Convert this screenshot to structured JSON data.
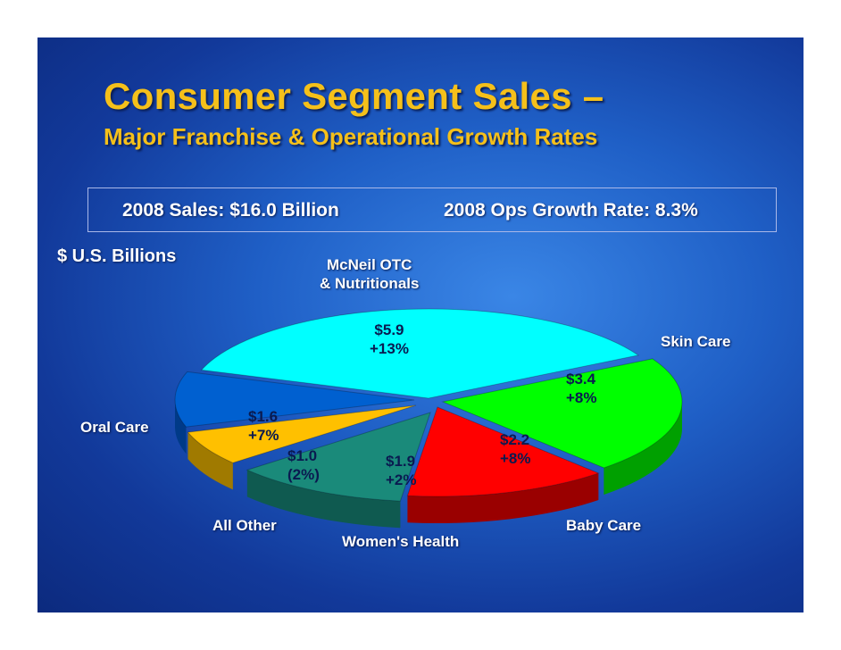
{
  "slide": {
    "title": "Consumer Segment Sales –",
    "subtitle": "Major Franchise & Operational Growth Rates",
    "sales_text": "2008 Sales: $16.0 Billion",
    "growth_text": "2008 Ops Growth Rate: 8.3%",
    "units_label": "$ U.S. Billions"
  },
  "chart_data": {
    "type": "pie",
    "title": "Consumer Segment Sales – Major Franchise & Operational Growth Rates",
    "unit": "$ U.S. Billions",
    "total": 16.0,
    "slices": [
      {
        "name": "McNeil OTC & Nutritionals",
        "name_line1": "McNeil OTC",
        "name_line2": "& Nutritionals",
        "value": 5.9,
        "value_label": "$5.9",
        "growth_label": "+13%",
        "color": "#00ffff",
        "side_color": "#00a8b4"
      },
      {
        "name": "Skin Care",
        "value": 3.4,
        "value_label": "$3.4",
        "growth_label": "+8%",
        "color": "#00ff00",
        "side_color": "#00a000"
      },
      {
        "name": "Baby Care",
        "value": 2.2,
        "value_label": "$2.2",
        "growth_label": "+8%",
        "color": "#ff0000",
        "side_color": "#9a0000"
      },
      {
        "name": "Women's Health",
        "value": 1.9,
        "value_label": "$1.9",
        "growth_label": "+2%",
        "color": "#1a8a7a",
        "side_color": "#0f5a50"
      },
      {
        "name": "All Other",
        "value": 1.0,
        "value_label": "$1.0",
        "growth_label": "(2%)",
        "color": "#ffc000",
        "side_color": "#a07a00"
      },
      {
        "name": "Oral Care",
        "value": 1.6,
        "value_label": "$1.6",
        "growth_label": "+7%",
        "color": "#0060d0",
        "side_color": "#003a88"
      }
    ]
  }
}
